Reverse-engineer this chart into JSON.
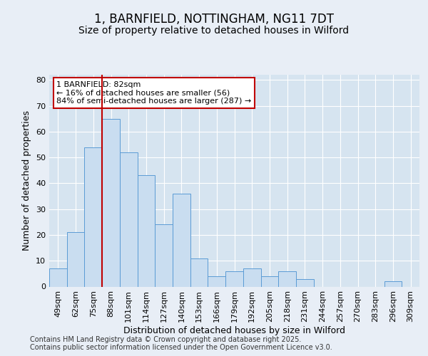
{
  "title_line1": "1, BARNFIELD, NOTTINGHAM, NG11 7DT",
  "title_line2": "Size of property relative to detached houses in Wilford",
  "xlabel": "Distribution of detached houses by size in Wilford",
  "ylabel": "Number of detached properties",
  "categories": [
    "49sqm",
    "62sqm",
    "75sqm",
    "88sqm",
    "101sqm",
    "114sqm",
    "127sqm",
    "140sqm",
    "153sqm",
    "166sqm",
    "179sqm",
    "192sqm",
    "205sqm",
    "218sqm",
    "231sqm",
    "244sqm",
    "257sqm",
    "270sqm",
    "283sqm",
    "296sqm",
    "309sqm"
  ],
  "values": [
    7,
    21,
    54,
    65,
    52,
    43,
    24,
    36,
    11,
    4,
    6,
    7,
    4,
    6,
    3,
    0,
    0,
    0,
    0,
    2,
    0
  ],
  "highlight_index": 2,
  "bar_color": "#c9ddf0",
  "bar_edge_color": "#5b9bd5",
  "annotation_text": "1 BARNFIELD: 82sqm\n← 16% of detached houses are smaller (56)\n84% of semi-detached houses are larger (287) →",
  "annotation_box_color": "#ffffff",
  "annotation_box_edge_color": "#c00000",
  "red_line_color": "#c00000",
  "ylim": [
    0,
    82
  ],
  "yticks": [
    0,
    10,
    20,
    30,
    40,
    50,
    60,
    70,
    80
  ],
  "background_color": "#e8eef6",
  "plot_background_color": "#d6e4f0",
  "grid_color": "#ffffff",
  "footer_text": "Contains HM Land Registry data © Crown copyright and database right 2025.\nContains public sector information licensed under the Open Government Licence v3.0.",
  "title_fontsize": 12,
  "subtitle_fontsize": 10,
  "axis_label_fontsize": 9,
  "tick_fontsize": 8,
  "annotation_fontsize": 8,
  "footer_fontsize": 7
}
